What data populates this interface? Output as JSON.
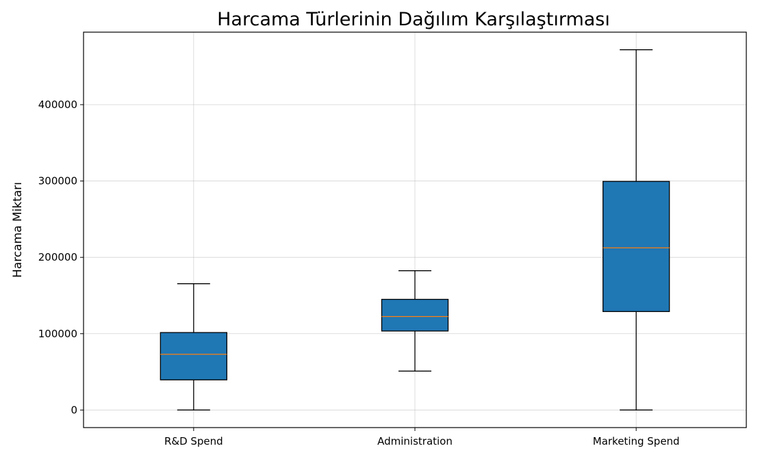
{
  "chart_data": {
    "type": "box",
    "title": "Harcama Türlerinin Dağılım Karşılaştırması",
    "xlabel": "",
    "ylabel": "Harcama Miktarı",
    "ylim": [
      -23000,
      495000
    ],
    "yticks": [
      0,
      100000,
      200000,
      300000,
      400000
    ],
    "ytick_labels": [
      "0",
      "100000",
      "200000",
      "300000",
      "400000"
    ],
    "grid": true,
    "categories": [
      "R&D Spend",
      "Administration",
      "Marketing Spend"
    ],
    "boxes": [
      {
        "label": "R&D Spend",
        "min": 0,
        "q1": 39500,
        "median": 73000,
        "q3": 101500,
        "max": 165500
      },
      {
        "label": "Administration",
        "min": 51000,
        "q1": 103500,
        "median": 122500,
        "q3": 145000,
        "max": 182500
      },
      {
        "label": "Marketing Spend",
        "min": 0,
        "q1": 129000,
        "median": 212500,
        "q3": 299500,
        "max": 472000
      }
    ],
    "colors": {
      "box_fill": "#1f77b4",
      "median": "#ff7f0e"
    }
  }
}
